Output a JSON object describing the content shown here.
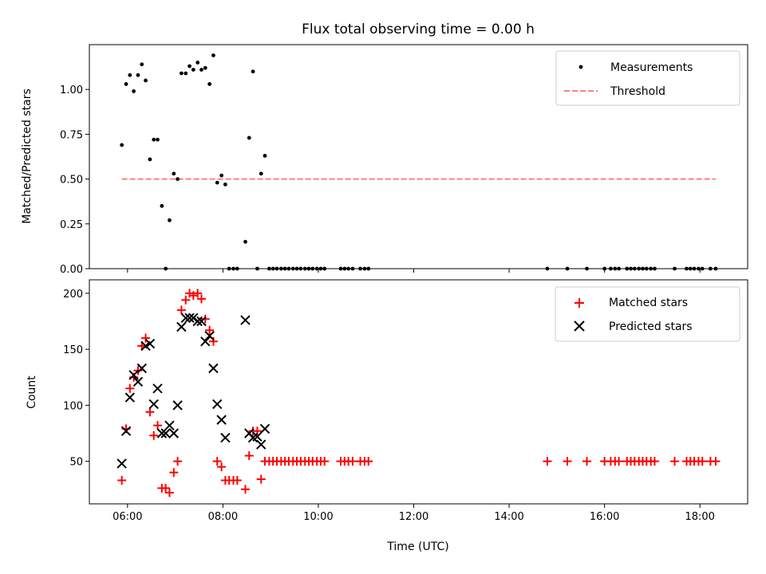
{
  "title": "Flux total observing time = 0.00 h",
  "colors": {
    "measurements": "#000000",
    "threshold": "#ff7f7f",
    "matched": "#ff0000",
    "predicted": "#000000",
    "legend_border": "#cccccc"
  },
  "chart_data": [
    {
      "type": "scatter",
      "name": "top-panel",
      "ylabel": "Matched/Predicted stars",
      "xlabel": "",
      "xlim": [
        5.2,
        19.0
      ],
      "ylim": [
        0.0,
        1.25
      ],
      "yticks": [
        0.0,
        0.25,
        0.5,
        0.75,
        1.0
      ],
      "ytick_labels": [
        "0.00",
        "0.25",
        "0.50",
        "0.75",
        "1.00"
      ],
      "xticks": [
        6,
        8,
        10,
        12,
        14,
        16,
        18
      ],
      "show_xtick_labels": false,
      "grid": false,
      "legend": {
        "placement": "top-right",
        "entries": [
          "Measurements",
          "Threshold"
        ]
      },
      "threshold": {
        "value": 0.5,
        "x_range": [
          5.88,
          18.33
        ]
      },
      "series": [
        {
          "name": "Measurements",
          "marker": "dot",
          "points": [
            [
              5.88,
              0.69
            ],
            [
              5.97,
              1.03
            ],
            [
              6.05,
              1.08
            ],
            [
              6.13,
              0.99
            ],
            [
              6.22,
              1.08
            ],
            [
              6.3,
              1.14
            ],
            [
              6.38,
              1.05
            ],
            [
              6.47,
              0.61
            ],
            [
              6.55,
              0.72
            ],
            [
              6.63,
              0.72
            ],
            [
              6.72,
              0.35
            ],
            [
              6.8,
              0.0
            ],
            [
              6.88,
              0.27
            ],
            [
              6.97,
              0.53
            ],
            [
              7.05,
              0.5
            ],
            [
              7.13,
              1.09
            ],
            [
              7.22,
              1.09
            ],
            [
              7.3,
              1.13
            ],
            [
              7.38,
              1.11
            ],
            [
              7.47,
              1.15
            ],
            [
              7.55,
              1.11
            ],
            [
              7.63,
              1.12
            ],
            [
              7.72,
              1.03
            ],
            [
              7.8,
              1.19
            ],
            [
              7.88,
              0.48
            ],
            [
              7.97,
              0.52
            ],
            [
              8.05,
              0.47
            ],
            [
              8.13,
              0.0
            ],
            [
              8.22,
              0.0
            ],
            [
              8.3,
              0.0
            ],
            [
              8.47,
              0.15
            ],
            [
              8.55,
              0.73
            ],
            [
              8.63,
              1.1
            ],
            [
              8.72,
              0.0
            ],
            [
              8.8,
              0.53
            ],
            [
              8.88,
              0.63
            ],
            [
              8.97,
              0.0
            ],
            [
              9.05,
              0.0
            ],
            [
              9.13,
              0.0
            ],
            [
              9.22,
              0.0
            ],
            [
              9.3,
              0.0
            ],
            [
              9.38,
              0.0
            ],
            [
              9.47,
              0.0
            ],
            [
              9.55,
              0.0
            ],
            [
              9.63,
              0.0
            ],
            [
              9.72,
              0.0
            ],
            [
              9.8,
              0.0
            ],
            [
              9.88,
              0.0
            ],
            [
              9.97,
              0.0
            ],
            [
              10.05,
              0.0
            ],
            [
              10.13,
              0.0
            ],
            [
              10.47,
              0.0
            ],
            [
              10.55,
              0.0
            ],
            [
              10.63,
              0.0
            ],
            [
              10.72,
              0.0
            ],
            [
              10.88,
              0.0
            ],
            [
              10.97,
              0.0
            ],
            [
              11.05,
              0.0
            ],
            [
              14.8,
              0.0
            ],
            [
              15.22,
              0.0
            ],
            [
              15.63,
              0.0
            ],
            [
              16.0,
              0.0
            ],
            [
              16.13,
              0.0
            ],
            [
              16.22,
              0.0
            ],
            [
              16.3,
              0.0
            ],
            [
              16.47,
              0.0
            ],
            [
              16.55,
              0.0
            ],
            [
              16.63,
              0.0
            ],
            [
              16.72,
              0.0
            ],
            [
              16.8,
              0.0
            ],
            [
              16.88,
              0.0
            ],
            [
              16.97,
              0.0
            ],
            [
              17.05,
              0.0
            ],
            [
              17.47,
              0.0
            ],
            [
              17.72,
              0.0
            ],
            [
              17.8,
              0.0
            ],
            [
              17.88,
              0.0
            ],
            [
              17.97,
              0.0
            ],
            [
              18.05,
              0.0
            ],
            [
              18.22,
              0.0
            ],
            [
              18.33,
              0.0
            ]
          ]
        }
      ]
    },
    {
      "type": "scatter",
      "name": "bottom-panel",
      "ylabel": "Count",
      "xlabel": "Time (UTC)",
      "xlim": [
        5.2,
        19.0
      ],
      "ylim": [
        12,
        212
      ],
      "yticks": [
        50,
        100,
        150,
        200
      ],
      "ytick_labels": [
        "50",
        "100",
        "150",
        "200"
      ],
      "xticks": [
        6,
        8,
        10,
        12,
        14,
        16,
        18
      ],
      "xtick_labels": [
        "06:00",
        "08:00",
        "10:00",
        "12:00",
        "14:00",
        "16:00",
        "18:00"
      ],
      "grid": false,
      "legend": {
        "placement": "top-right",
        "entries": [
          "Matched stars",
          "Predicted stars"
        ]
      },
      "series": [
        {
          "name": "Matched stars",
          "marker": "plus",
          "points": [
            [
              5.88,
              33
            ],
            [
              5.97,
              79
            ],
            [
              6.05,
              115
            ],
            [
              6.13,
              125
            ],
            [
              6.22,
              131
            ],
            [
              6.3,
              153
            ],
            [
              6.38,
              160
            ],
            [
              6.47,
              94
            ],
            [
              6.55,
              73
            ],
            [
              6.63,
              82
            ],
            [
              6.72,
              26
            ],
            [
              6.8,
              26
            ],
            [
              6.88,
              22
            ],
            [
              6.97,
              40
            ],
            [
              7.05,
              50
            ],
            [
              7.13,
              185
            ],
            [
              7.22,
              194
            ],
            [
              7.3,
              200
            ],
            [
              7.38,
              198
            ],
            [
              7.47,
              200
            ],
            [
              7.55,
              195
            ],
            [
              7.63,
              177
            ],
            [
              7.72,
              167
            ],
            [
              7.8,
              157
            ],
            [
              7.88,
              50
            ],
            [
              7.97,
              45
            ],
            [
              8.05,
              33
            ],
            [
              8.13,
              33
            ],
            [
              8.22,
              33
            ],
            [
              8.3,
              33
            ],
            [
              8.47,
              25
            ],
            [
              8.55,
              55
            ],
            [
              8.63,
              77
            ],
            [
              8.72,
              77
            ],
            [
              8.8,
              34
            ],
            [
              8.88,
              50
            ],
            [
              8.97,
              50
            ],
            [
              9.05,
              50
            ],
            [
              9.13,
              50
            ],
            [
              9.22,
              50
            ],
            [
              9.3,
              50
            ],
            [
              9.38,
              50
            ],
            [
              9.47,
              50
            ],
            [
              9.55,
              50
            ],
            [
              9.63,
              50
            ],
            [
              9.72,
              50
            ],
            [
              9.8,
              50
            ],
            [
              9.88,
              50
            ],
            [
              9.97,
              50
            ],
            [
              10.05,
              50
            ],
            [
              10.13,
              50
            ],
            [
              10.47,
              50
            ],
            [
              10.55,
              50
            ],
            [
              10.63,
              50
            ],
            [
              10.72,
              50
            ],
            [
              10.88,
              50
            ],
            [
              10.97,
              50
            ],
            [
              11.05,
              50
            ],
            [
              14.8,
              50
            ],
            [
              15.22,
              50
            ],
            [
              15.63,
              50
            ],
            [
              16.0,
              50
            ],
            [
              16.13,
              50
            ],
            [
              16.22,
              50
            ],
            [
              16.3,
              50
            ],
            [
              16.47,
              50
            ],
            [
              16.55,
              50
            ],
            [
              16.63,
              50
            ],
            [
              16.72,
              50
            ],
            [
              16.8,
              50
            ],
            [
              16.88,
              50
            ],
            [
              16.97,
              50
            ],
            [
              17.05,
              50
            ],
            [
              17.47,
              50
            ],
            [
              17.72,
              50
            ],
            [
              17.8,
              50
            ],
            [
              17.88,
              50
            ],
            [
              17.97,
              50
            ],
            [
              18.05,
              50
            ],
            [
              18.22,
              50
            ],
            [
              18.33,
              50
            ]
          ]
        },
        {
          "name": "Predicted stars",
          "marker": "cross",
          "points": [
            [
              5.88,
              48
            ],
            [
              5.97,
              77
            ],
            [
              6.05,
              107
            ],
            [
              6.13,
              127
            ],
            [
              6.22,
              121
            ],
            [
              6.3,
              133
            ],
            [
              6.38,
              153
            ],
            [
              6.47,
              155
            ],
            [
              6.55,
              101
            ],
            [
              6.63,
              115
            ],
            [
              6.72,
              75
            ],
            [
              6.8,
              75
            ],
            [
              6.88,
              82
            ],
            [
              6.97,
              75
            ],
            [
              7.05,
              100
            ],
            [
              7.13,
              170
            ],
            [
              7.22,
              178
            ],
            [
              7.3,
              178
            ],
            [
              7.38,
              178
            ],
            [
              7.47,
              175
            ],
            [
              7.55,
              175
            ],
            [
              7.63,
              157
            ],
            [
              7.72,
              162
            ],
            [
              7.8,
              133
            ],
            [
              7.88,
              101
            ],
            [
              7.97,
              87
            ],
            [
              8.05,
              71
            ],
            [
              8.47,
              176
            ],
            [
              8.55,
              75
            ],
            [
              8.63,
              71
            ],
            [
              8.72,
              72
            ],
            [
              8.8,
              65
            ],
            [
              8.88,
              79
            ]
          ]
        }
      ]
    }
  ]
}
